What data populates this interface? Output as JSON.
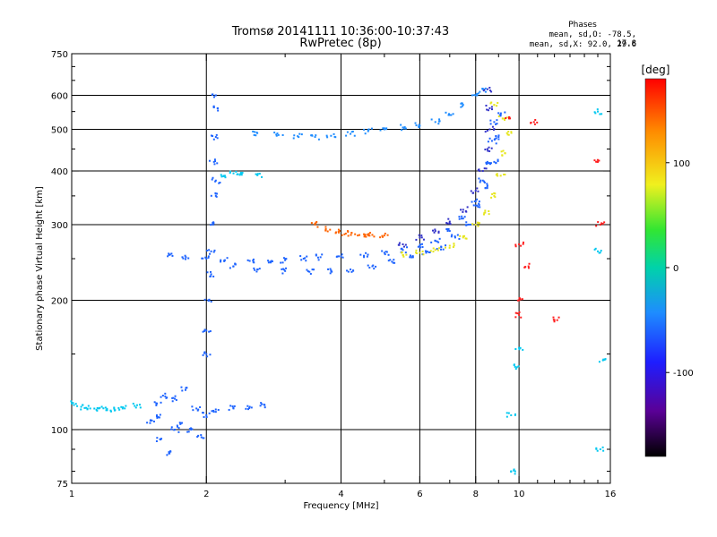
{
  "header": {
    "title_line1": "Tromsø 20141111 10:36:00-10:37:43",
    "title_line2": "RwPretec (8p)",
    "stats_heading": "Phases",
    "stats_o": "mean, sd,O: -78.5, 17.8",
    "stats_x": "mean, sd,X:  92.0, 29.6"
  },
  "colorbar": {
    "unit": "[deg]",
    "ticks": [
      100,
      0,
      -100
    ],
    "range": [
      -180,
      180
    ],
    "colormap": "rainbow (black-purple-blue-cyan-green-yellow-orange-red)"
  },
  "chart_data": {
    "type": "scatter",
    "title": "Tromsø 20141111 10:36:00-10:37:43",
    "subtitle": "RwPretec (8p)",
    "xlabel": "Frequency [MHz]",
    "ylabel": "Stationary phase Virtual Height [km]",
    "xscale": "log",
    "yscale": "log",
    "xlim": [
      1,
      16
    ],
    "ylim": [
      75,
      750
    ],
    "xticks": [
      1,
      2,
      4,
      6,
      8,
      10,
      16
    ],
    "yticks": [
      75,
      100,
      200,
      300,
      400,
      500,
      600,
      750
    ],
    "grid_x": [
      2,
      4,
      6,
      8,
      10
    ],
    "grid_y": [
      100,
      200,
      300,
      400,
      500,
      600
    ],
    "series": [
      {
        "name": "",
        "color": "#1e64ff",
        "phase": -90,
        "points": [
          [
            1.58,
            95
          ],
          [
            1.65,
            88
          ],
          [
            1.7,
            100
          ],
          [
            1.75,
            103
          ],
          [
            1.85,
            100
          ],
          [
            1.95,
            96
          ],
          [
            1.55,
            115
          ],
          [
            1.6,
            120
          ],
          [
            1.7,
            118
          ],
          [
            1.8,
            125
          ],
          [
            1.9,
            112
          ],
          [
            2.0,
            108
          ],
          [
            2.1,
            110
          ],
          [
            2.3,
            112
          ],
          [
            2.5,
            113
          ],
          [
            2.7,
            114
          ],
          [
            1.5,
            105
          ],
          [
            1.55,
            108
          ]
        ]
      },
      {
        "name": "",
        "color": "#00c8f0",
        "phase": -60,
        "points": [
          [
            1.0,
            115
          ],
          [
            1.05,
            113
          ],
          [
            1.1,
            112
          ],
          [
            1.15,
            112
          ],
          [
            1.2,
            111
          ],
          [
            1.25,
            111
          ],
          [
            1.3,
            112
          ],
          [
            1.4,
            114
          ]
        ]
      },
      {
        "name": "",
        "color": "#1e64ff",
        "phase": -95,
        "points": [
          [
            2.0,
            150
          ],
          [
            2.0,
            170
          ],
          [
            2.02,
            200
          ],
          [
            2.05,
            230
          ],
          [
            2.05,
            260
          ],
          [
            2.07,
            300
          ],
          [
            2.1,
            350
          ],
          [
            2.1,
            380
          ],
          [
            2.08,
            420
          ],
          [
            2.1,
            480
          ],
          [
            2.12,
            560
          ],
          [
            2.1,
            600
          ]
        ]
      },
      {
        "name": "",
        "color": "#1e64ff",
        "phase": -95,
        "points": [
          [
            1.65,
            255
          ],
          [
            1.8,
            252
          ],
          [
            2.0,
            250
          ],
          [
            2.2,
            248
          ],
          [
            2.5,
            247
          ],
          [
            2.8,
            247
          ],
          [
            3.0,
            248
          ],
          [
            3.3,
            250
          ],
          [
            3.6,
            252
          ],
          [
            4.0,
            253
          ],
          [
            4.5,
            254
          ],
          [
            5.0,
            258
          ],
          [
            5.5,
            262
          ],
          [
            6.0,
            268
          ],
          [
            6.5,
            275
          ],
          [
            7.0,
            290
          ],
          [
            7.5,
            310
          ],
          [
            8.0,
            340
          ],
          [
            8.3,
            380
          ],
          [
            8.5,
            420
          ],
          [
            8.7,
            470
          ],
          [
            8.8,
            520
          ]
        ]
      },
      {
        "name": "",
        "color": "#1e64ff",
        "phase": -90,
        "points": [
          [
            2.3,
            240
          ],
          [
            2.6,
            236
          ],
          [
            3.0,
            234
          ],
          [
            3.4,
            233
          ],
          [
            3.8,
            234
          ],
          [
            4.2,
            236
          ],
          [
            4.7,
            240
          ],
          [
            5.2,
            246
          ],
          [
            5.7,
            252
          ],
          [
            6.2,
            258
          ],
          [
            6.7,
            266
          ],
          [
            7.2,
            280
          ],
          [
            7.7,
            300
          ],
          [
            8.1,
            330
          ],
          [
            8.5,
            370
          ],
          [
            8.8,
            420
          ],
          [
            9.0,
            480
          ],
          [
            9.1,
            540
          ]
        ]
      },
      {
        "name": "",
        "color": "#3232c8",
        "phase": -120,
        "points": [
          [
            5.5,
            270
          ],
          [
            6.0,
            280
          ],
          [
            6.5,
            290
          ],
          [
            7.0,
            305
          ],
          [
            7.5,
            325
          ],
          [
            8.0,
            360
          ],
          [
            8.3,
            400
          ],
          [
            8.5,
            450
          ],
          [
            8.6,
            500
          ],
          [
            8.6,
            560
          ],
          [
            8.5,
            620
          ]
        ]
      },
      {
        "name": "",
        "color": "#e6e61e",
        "phase": 110,
        "points": [
          [
            5.5,
            255
          ],
          [
            6.0,
            258
          ],
          [
            6.5,
            262
          ],
          [
            7.0,
            268
          ],
          [
            7.5,
            280
          ],
          [
            8.0,
            300
          ],
          [
            8.4,
            320
          ],
          [
            8.8,
            350
          ],
          [
            9.1,
            390
          ],
          [
            9.3,
            440
          ],
          [
            9.4,
            490
          ],
          [
            9.2,
            530
          ],
          [
            8.8,
            570
          ]
        ]
      },
      {
        "name": "",
        "color": "#ff6400",
        "phase": 150,
        "points": [
          [
            3.5,
            300
          ],
          [
            3.7,
            293
          ],
          [
            3.9,
            288
          ],
          [
            4.1,
            286
          ],
          [
            4.3,
            285
          ],
          [
            4.5,
            285
          ],
          [
            4.7,
            284
          ],
          [
            5.0,
            283
          ]
        ]
      },
      {
        "name": "",
        "color": "#1e8cff",
        "phase": -80,
        "points": [
          [
            2.6,
            490
          ],
          [
            2.9,
            485
          ],
          [
            3.2,
            482
          ],
          [
            3.5,
            480
          ],
          [
            3.8,
            483
          ],
          [
            4.2,
            488
          ],
          [
            4.6,
            495
          ],
          [
            5.0,
            500
          ],
          [
            5.5,
            505
          ],
          [
            6.0,
            510
          ],
          [
            6.5,
            520
          ],
          [
            7.0,
            540
          ],
          [
            7.5,
            570
          ],
          [
            8.0,
            600
          ],
          [
            8.3,
            620
          ]
        ]
      },
      {
        "name": "",
        "color": "#00c8f0",
        "phase": -60,
        "points": [
          [
            2.2,
            390
          ],
          [
            2.3,
            395
          ],
          [
            2.4,
            392
          ],
          [
            2.6,
            392
          ]
        ]
      },
      {
        "name": "",
        "color": "#ff1e1e",
        "phase": 170,
        "points": [
          [
            9.5,
            530
          ],
          [
            10.0,
            270
          ],
          [
            10.0,
            200
          ],
          [
            10.0,
            185
          ],
          [
            10.5,
            240
          ],
          [
            10.8,
            520
          ],
          [
            12.0,
            180
          ],
          [
            15.0,
            420
          ],
          [
            15.2,
            300
          ]
        ]
      },
      {
        "name": "",
        "color": "#00c8f0",
        "phase": -50,
        "points": [
          [
            9.6,
            108
          ],
          [
            9.6,
            80
          ],
          [
            9.8,
            140
          ],
          [
            10.0,
            155
          ],
          [
            15.0,
            260
          ],
          [
            15.2,
            90
          ],
          [
            15.4,
            145
          ],
          [
            15.0,
            550
          ]
        ]
      }
    ]
  }
}
